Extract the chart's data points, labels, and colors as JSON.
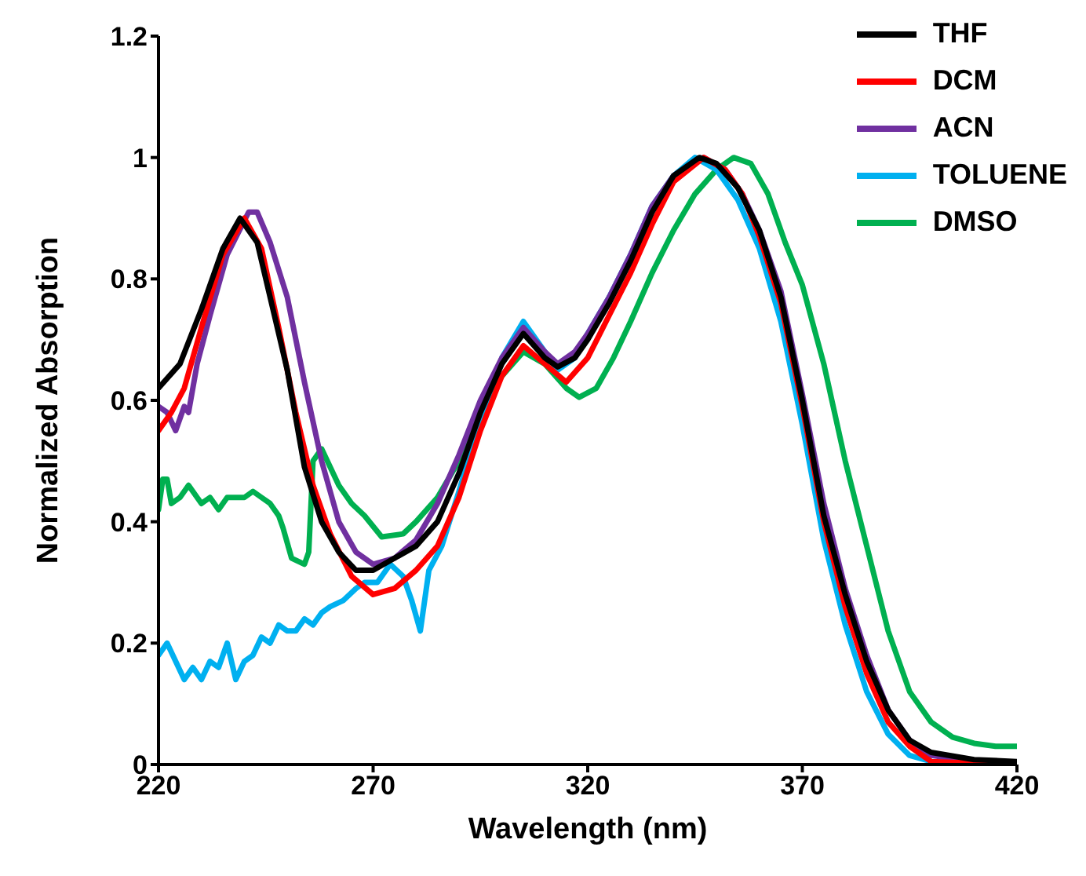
{
  "chart_data": {
    "type": "line",
    "xlabel": "Wavelength (nm)",
    "ylabel": "Normalized Absorption",
    "xlim": [
      220,
      420
    ],
    "xticks": [
      220,
      270,
      320,
      370,
      420
    ],
    "ylim": [
      0,
      1.2
    ],
    "yticks": [
      0,
      0.2,
      0.4,
      0.6,
      0.8,
      1,
      1.2
    ],
    "grid": false,
    "legend": "top right",
    "marker": "none",
    "line_style": "solid",
    "series": [
      {
        "name": "THF",
        "color": "#000000",
        "x": [
          220,
          225,
          230,
          235,
          239,
          243,
          247,
          250,
          254,
          258,
          262,
          266,
          270,
          275,
          280,
          285,
          290,
          295,
          300,
          305,
          310,
          313,
          317,
          320,
          325,
          330,
          335,
          340,
          346,
          350,
          355,
          360,
          365,
          370,
          375,
          380,
          385,
          390,
          395,
          400,
          410,
          420
        ],
        "values": [
          0.62,
          0.66,
          0.75,
          0.85,
          0.9,
          0.86,
          0.74,
          0.65,
          0.49,
          0.4,
          0.35,
          0.32,
          0.32,
          0.34,
          0.36,
          0.4,
          0.48,
          0.58,
          0.66,
          0.71,
          0.67,
          0.655,
          0.67,
          0.7,
          0.76,
          0.83,
          0.91,
          0.97,
          1.0,
          0.99,
          0.95,
          0.88,
          0.77,
          0.6,
          0.41,
          0.28,
          0.17,
          0.09,
          0.04,
          0.02,
          0.008,
          0.005
        ]
      },
      {
        "name": "DCM",
        "color": "#ff0000",
        "x": [
          220,
          223,
          226,
          230,
          235,
          240,
          244,
          248,
          252,
          256,
          260,
          265,
          270,
          275,
          280,
          285,
          290,
          295,
          300,
          305,
          310,
          315,
          320,
          325,
          330,
          335,
          340,
          347,
          352,
          356,
          360,
          365,
          370,
          375,
          380,
          385,
          390,
          395,
          400,
          420
        ],
        "values": [
          0.55,
          0.58,
          0.62,
          0.72,
          0.84,
          0.9,
          0.85,
          0.72,
          0.58,
          0.46,
          0.38,
          0.31,
          0.28,
          0.29,
          0.32,
          0.36,
          0.44,
          0.55,
          0.64,
          0.69,
          0.66,
          0.63,
          0.67,
          0.74,
          0.81,
          0.89,
          0.96,
          1.0,
          0.98,
          0.94,
          0.87,
          0.76,
          0.59,
          0.4,
          0.26,
          0.15,
          0.07,
          0.03,
          0.005,
          0
        ]
      },
      {
        "name": "ACN",
        "color": "#7030a0",
        "x": [
          220,
          222,
          224,
          226,
          227,
          229,
          232,
          236,
          241,
          243,
          246,
          250,
          254,
          258,
          262,
          266,
          270,
          275,
          280,
          285,
          290,
          295,
          300,
          305,
          310,
          313,
          317,
          320,
          325,
          330,
          335,
          340,
          347,
          352,
          356,
          360,
          365,
          370,
          375,
          380,
          385,
          390,
          395,
          400,
          410,
          420
        ],
        "values": [
          0.59,
          0.58,
          0.55,
          0.59,
          0.58,
          0.66,
          0.74,
          0.84,
          0.91,
          0.91,
          0.86,
          0.77,
          0.63,
          0.5,
          0.4,
          0.35,
          0.33,
          0.34,
          0.37,
          0.43,
          0.51,
          0.6,
          0.67,
          0.72,
          0.68,
          0.66,
          0.68,
          0.71,
          0.77,
          0.84,
          0.92,
          0.97,
          1.0,
          0.98,
          0.94,
          0.88,
          0.78,
          0.61,
          0.43,
          0.29,
          0.18,
          0.09,
          0.04,
          0.015,
          0.005,
          0
        ]
      },
      {
        "name": "TOLUENE",
        "color": "#00b0f0",
        "x": [
          220,
          222,
          224,
          226,
          228,
          230,
          232,
          234,
          236,
          238,
          240,
          242,
          244,
          246,
          248,
          250,
          252,
          254,
          256,
          258,
          260,
          263,
          266,
          268,
          271,
          274,
          277,
          279,
          281,
          283,
          286,
          290,
          295,
          300,
          305,
          310,
          313,
          317,
          320,
          325,
          330,
          335,
          340,
          345,
          350,
          355,
          360,
          365,
          370,
          375,
          380,
          385,
          390,
          395,
          400,
          420
        ],
        "values": [
          0.18,
          0.2,
          0.17,
          0.14,
          0.16,
          0.14,
          0.17,
          0.16,
          0.2,
          0.14,
          0.17,
          0.18,
          0.21,
          0.2,
          0.23,
          0.22,
          0.22,
          0.24,
          0.23,
          0.25,
          0.26,
          0.27,
          0.29,
          0.3,
          0.3,
          0.33,
          0.31,
          0.27,
          0.22,
          0.32,
          0.36,
          0.45,
          0.57,
          0.67,
          0.73,
          0.68,
          0.65,
          0.67,
          0.71,
          0.77,
          0.84,
          0.92,
          0.97,
          1.0,
          0.98,
          0.93,
          0.85,
          0.73,
          0.56,
          0.37,
          0.23,
          0.12,
          0.05,
          0.015,
          0.005,
          0
        ]
      },
      {
        "name": "DMSO",
        "color": "#00b050",
        "x": [
          220,
          221,
          222,
          223,
          225,
          227,
          228,
          230,
          232,
          234,
          236,
          238,
          240,
          242,
          244,
          246,
          248,
          249,
          251,
          254,
          255,
          256,
          258,
          260,
          262,
          265,
          268,
          272,
          277,
          280,
          285,
          290,
          295,
          300,
          305,
          310,
          315,
          318,
          322,
          326,
          330,
          335,
          340,
          345,
          350,
          354,
          358,
          362,
          366,
          370,
          375,
          380,
          385,
          390,
          395,
          400,
          405,
          410,
          415,
          420
        ],
        "values": [
          0.42,
          0.47,
          0.47,
          0.43,
          0.44,
          0.46,
          0.45,
          0.43,
          0.44,
          0.42,
          0.44,
          0.44,
          0.44,
          0.45,
          0.44,
          0.43,
          0.41,
          0.39,
          0.34,
          0.33,
          0.35,
          0.5,
          0.52,
          0.49,
          0.46,
          0.43,
          0.41,
          0.375,
          0.38,
          0.4,
          0.44,
          0.5,
          0.58,
          0.64,
          0.68,
          0.66,
          0.62,
          0.605,
          0.62,
          0.67,
          0.73,
          0.81,
          0.88,
          0.94,
          0.98,
          1.0,
          0.99,
          0.94,
          0.86,
          0.79,
          0.66,
          0.5,
          0.36,
          0.22,
          0.12,
          0.07,
          0.045,
          0.035,
          0.03,
          0.03
        ]
      }
    ]
  }
}
